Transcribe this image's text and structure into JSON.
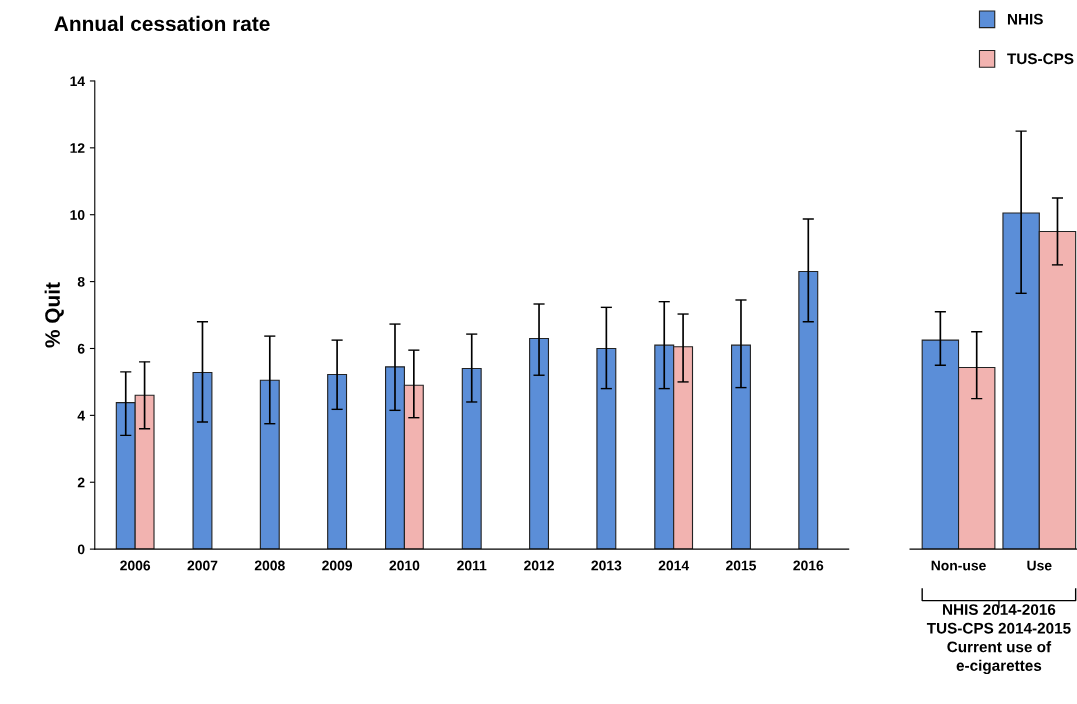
{
  "chart_data": [
    {
      "type": "bar",
      "title": "Annual cessation rate",
      "ylabel": "% Quit",
      "categories": [
        "2006",
        "2007",
        "2008",
        "2009",
        "2010",
        "2011",
        "2012",
        "2013",
        "2014",
        "2015",
        "2016"
      ],
      "ylim": [
        0,
        14
      ],
      "yticks": [
        0,
        2,
        4,
        6,
        8,
        10,
        12,
        14
      ],
      "grid": false,
      "legend": "top right",
      "series": [
        {
          "name": "NHIS",
          "color": "#5b8ed8",
          "values": [
            4.38,
            5.28,
            5.05,
            5.22,
            5.45,
            5.4,
            6.3,
            6.0,
            6.1,
            6.1,
            8.3
          ],
          "errors": [
            [
              3.4,
              5.3
            ],
            [
              3.8,
              6.8
            ],
            [
              3.75,
              6.37
            ],
            [
              4.18,
              6.25
            ],
            [
              4.15,
              6.73
            ],
            [
              4.4,
              6.43
            ],
            [
              5.2,
              7.33
            ],
            [
              4.8,
              7.23
            ],
            [
              4.8,
              7.4
            ],
            [
              4.83,
              7.45
            ],
            [
              6.8,
              9.87
            ]
          ]
        },
        {
          "name": "TUS-CPS",
          "color": "#f2b3b0",
          "values": [
            4.6,
            null,
            null,
            null,
            4.9,
            null,
            null,
            null,
            6.05,
            null,
            null
          ],
          "errors": [
            [
              3.6,
              5.6
            ],
            null,
            null,
            null,
            [
              3.93,
              5.95
            ],
            null,
            null,
            null,
            [
              5.0,
              7.03
            ],
            null,
            null
          ]
        }
      ]
    },
    {
      "type": "bar",
      "xlabel": "NHIS 2014-2016\nTUS-CPS 2014-2015\nCurrent use of\ne-cigarettes",
      "categories": [
        "Non-use",
        "Use"
      ],
      "ylim": [
        0,
        14
      ],
      "tick_labels": "x",
      "grid": false,
      "series": [
        {
          "color": "#5b8ed8",
          "values": [
            6.25,
            10.05
          ],
          "errors": [
            [
              5.5,
              7.1
            ],
            [
              7.65,
              12.5
            ]
          ]
        },
        {
          "color": "#f2b3b0",
          "values": [
            5.43,
            9.5
          ],
          "errors": [
            [
              4.5,
              6.5
            ],
            [
              8.5,
              10.5
            ]
          ]
        }
      ]
    }
  ]
}
